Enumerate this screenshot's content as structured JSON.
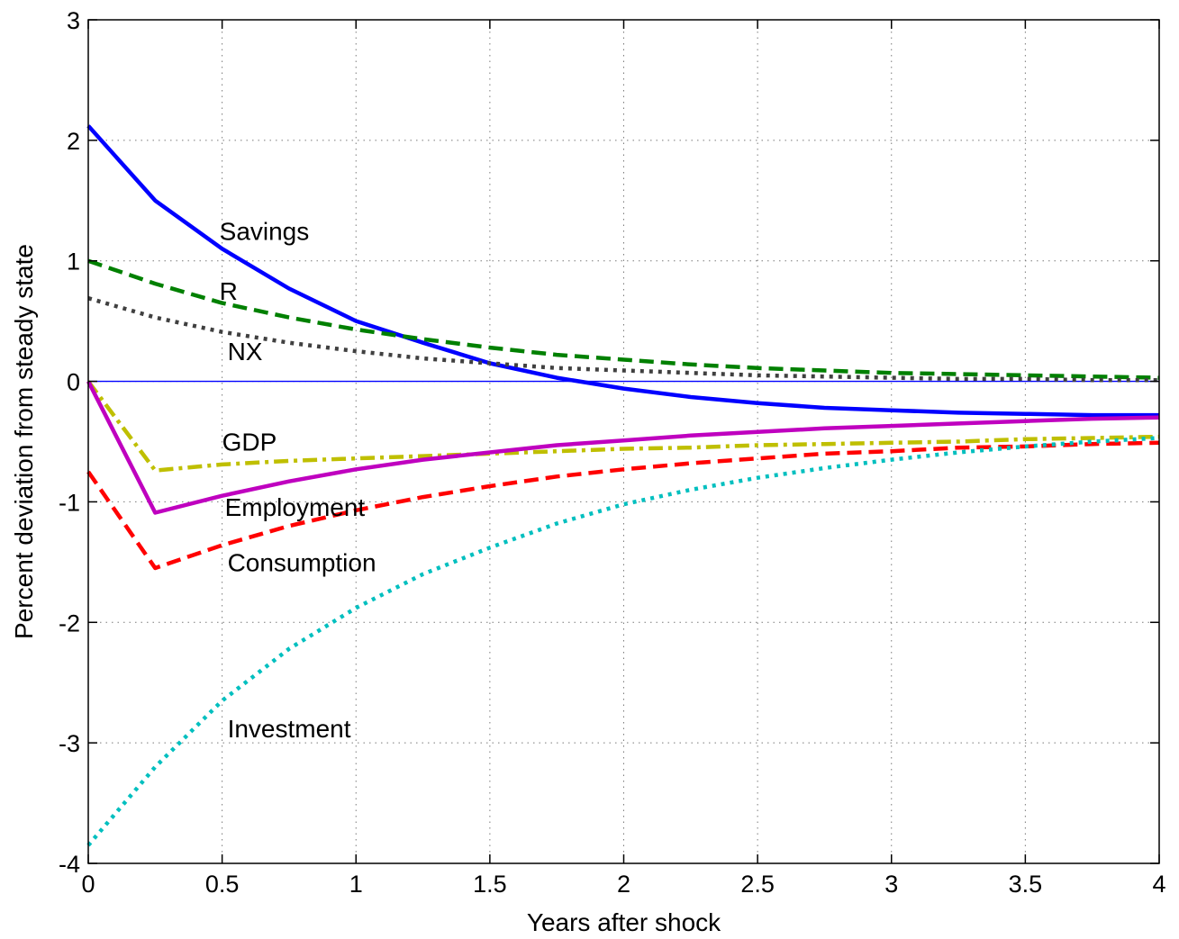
{
  "chart_data": {
    "type": "line",
    "title": "",
    "xlabel": "Years after shock",
    "ylabel": "Percent deviation from steady state",
    "xlim": [
      0,
      4
    ],
    "ylim": [
      -4,
      3
    ],
    "grid": true,
    "xticks": [
      0,
      0.5,
      1,
      1.5,
      2,
      2.5,
      3,
      3.5,
      4
    ],
    "xtick_labels": [
      "0",
      "0.5",
      "1",
      "1.5",
      "2",
      "2.5",
      "3",
      "3.5",
      "4"
    ],
    "yticks": [
      -4,
      -3,
      -2,
      -1,
      0,
      1,
      2,
      3
    ],
    "ytick_labels": [
      "-4",
      "-3",
      "-2",
      "-1",
      "0",
      "1",
      "2",
      "3"
    ],
    "zero_line": {
      "y": 0,
      "color": "#0000ff"
    },
    "x": [
      0,
      0.25,
      0.5,
      0.75,
      1,
      1.25,
      1.5,
      1.75,
      2,
      2.25,
      2.5,
      2.75,
      3,
      3.25,
      3.5,
      3.75,
      4
    ],
    "series": [
      {
        "key": "savings",
        "color": "#0000ff",
        "style": "solid",
        "values": [
          2.12,
          1.5,
          1.1,
          0.77,
          0.5,
          0.32,
          0.15,
          0.03,
          -0.06,
          -0.13,
          -0.18,
          -0.22,
          -0.24,
          -0.26,
          -0.27,
          -0.28,
          -0.28
        ]
      },
      {
        "key": "r",
        "color": "#008000",
        "style": "dashed",
        "values": [
          1.0,
          0.81,
          0.65,
          0.53,
          0.43,
          0.35,
          0.28,
          0.22,
          0.18,
          0.14,
          0.11,
          0.09,
          0.07,
          0.06,
          0.05,
          0.04,
          0.03
        ]
      },
      {
        "key": "nx",
        "color": "#404040",
        "style": "dotted",
        "values": [
          0.69,
          0.53,
          0.41,
          0.32,
          0.25,
          0.19,
          0.15,
          0.11,
          0.09,
          0.07,
          0.05,
          0.04,
          0.03,
          0.02,
          0.02,
          0.01,
          0.01
        ]
      },
      {
        "key": "gdp",
        "color": "#bfbf00",
        "style": "dashdot",
        "values": [
          0.0,
          -0.74,
          -0.69,
          -0.66,
          -0.64,
          -0.62,
          -0.6,
          -0.58,
          -0.56,
          -0.55,
          -0.53,
          -0.52,
          -0.51,
          -0.5,
          -0.48,
          -0.47,
          -0.46
        ]
      },
      {
        "key": "employment",
        "color": "#bf00bf",
        "style": "solid",
        "values": [
          0.0,
          -1.09,
          -0.95,
          -0.83,
          -0.73,
          -0.65,
          -0.59,
          -0.53,
          -0.49,
          -0.45,
          -0.42,
          -0.39,
          -0.37,
          -0.35,
          -0.33,
          -0.31,
          -0.3
        ]
      },
      {
        "key": "consumption",
        "color": "#ff0000",
        "style": "dashed",
        "values": [
          -0.75,
          -1.55,
          -1.36,
          -1.2,
          -1.07,
          -0.96,
          -0.87,
          -0.79,
          -0.73,
          -0.68,
          -0.64,
          -0.6,
          -0.58,
          -0.55,
          -0.54,
          -0.52,
          -0.51
        ]
      },
      {
        "key": "investment",
        "color": "#00bfbf",
        "style": "dotted",
        "values": [
          -3.85,
          -3.2,
          -2.65,
          -2.22,
          -1.88,
          -1.6,
          -1.38,
          -1.18,
          -1.02,
          -0.9,
          -0.8,
          -0.72,
          -0.65,
          -0.59,
          -0.54,
          -0.5,
          -0.47
        ]
      }
    ],
    "annotations": [
      {
        "text": "Savings",
        "x": 0.49,
        "y": 1.25
      },
      {
        "text": "R",
        "x": 0.49,
        "y": 0.75
      },
      {
        "text": "NX",
        "x": 0.52,
        "y": 0.25
      },
      {
        "text": "GDP",
        "x": 0.5,
        "y": -0.5
      },
      {
        "text": "Employment",
        "x": 0.51,
        "y": -1.04
      },
      {
        "text": "Consumption",
        "x": 0.52,
        "y": -1.5
      },
      {
        "text": "Investment",
        "x": 0.52,
        "y": -2.88
      }
    ]
  }
}
